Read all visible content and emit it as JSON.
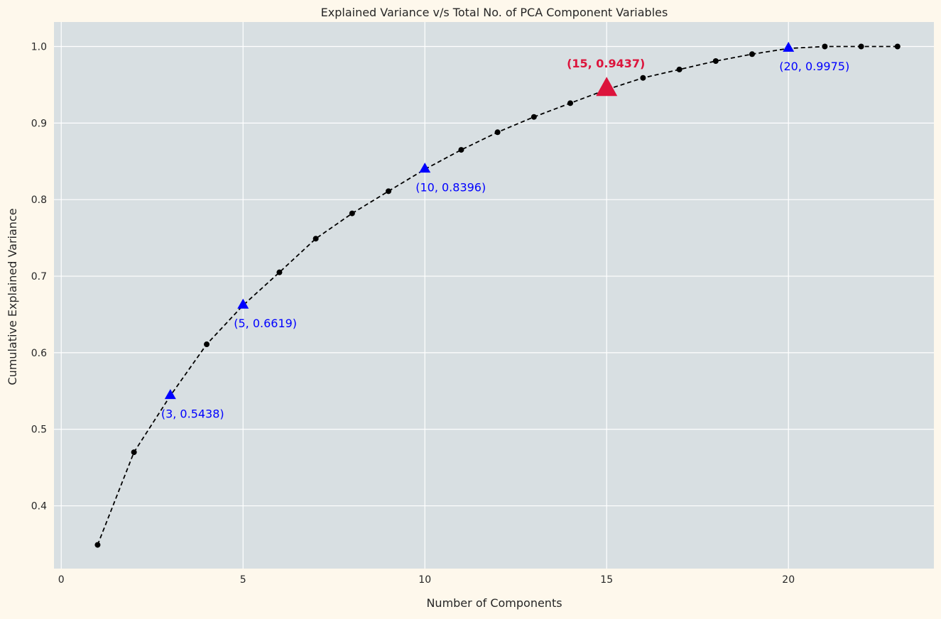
{
  "chart_data": {
    "type": "line",
    "title": "Explained Variance v/s Total No. of PCA Component Variables",
    "xlabel": "Number of Components",
    "ylabel": "Cumulative Explained Variance",
    "xlim": [
      -0.2,
      24
    ],
    "ylim": [
      0.318,
      1.032
    ],
    "xticks": [
      0,
      5,
      10,
      15,
      20
    ],
    "yticks": [
      0.4,
      0.5,
      0.6,
      0.7,
      0.8,
      0.9,
      1.0
    ],
    "xtick_labels": [
      "0",
      "5",
      "10",
      "15",
      "20"
    ],
    "ytick_labels": [
      "0.4",
      "0.5",
      "0.6",
      "0.7",
      "0.8",
      "0.9",
      "1.0"
    ],
    "grid": true,
    "series": [
      {
        "x": [
          1,
          2,
          3,
          4,
          5,
          6,
          7,
          8,
          9,
          10,
          11,
          12,
          13,
          14,
          15,
          16,
          17,
          18,
          19,
          20,
          21,
          22,
          23
        ],
        "y": [
          0.349,
          0.47,
          0.5438,
          0.611,
          0.6619,
          0.705,
          0.749,
          0.782,
          0.811,
          0.8396,
          0.865,
          0.888,
          0.908,
          0.926,
          0.9437,
          0.959,
          0.97,
          0.981,
          0.99,
          0.9975,
          1.0,
          1.0,
          1.0
        ],
        "color": "#000000",
        "line_style": "dashed",
        "marker": "circle"
      }
    ],
    "annotations": [
      {
        "x": 3,
        "y": 0.5438,
        "label": "(3, 0.5438)",
        "color": "#0000ff",
        "marker": "triangle",
        "position": "below"
      },
      {
        "x": 5,
        "y": 0.6619,
        "label": "(5, 0.6619)",
        "color": "#0000ff",
        "marker": "triangle",
        "position": "below"
      },
      {
        "x": 10,
        "y": 0.8396,
        "label": "(10, 0.8396)",
        "color": "#0000ff",
        "marker": "triangle",
        "position": "below"
      },
      {
        "x": 15,
        "y": 0.9437,
        "label": "(15, 0.9437)",
        "color": "#dc143c",
        "marker": "triangle-large",
        "position": "above",
        "bold": true
      },
      {
        "x": 20,
        "y": 0.9975,
        "label": "(20, 0.9975)",
        "color": "#0000ff",
        "marker": "triangle",
        "position": "below"
      }
    ],
    "colors": {
      "page_background": "#fef8ec",
      "plot_background": "#d8dfe2",
      "grid": "#ffffff",
      "text": "#262626"
    }
  }
}
